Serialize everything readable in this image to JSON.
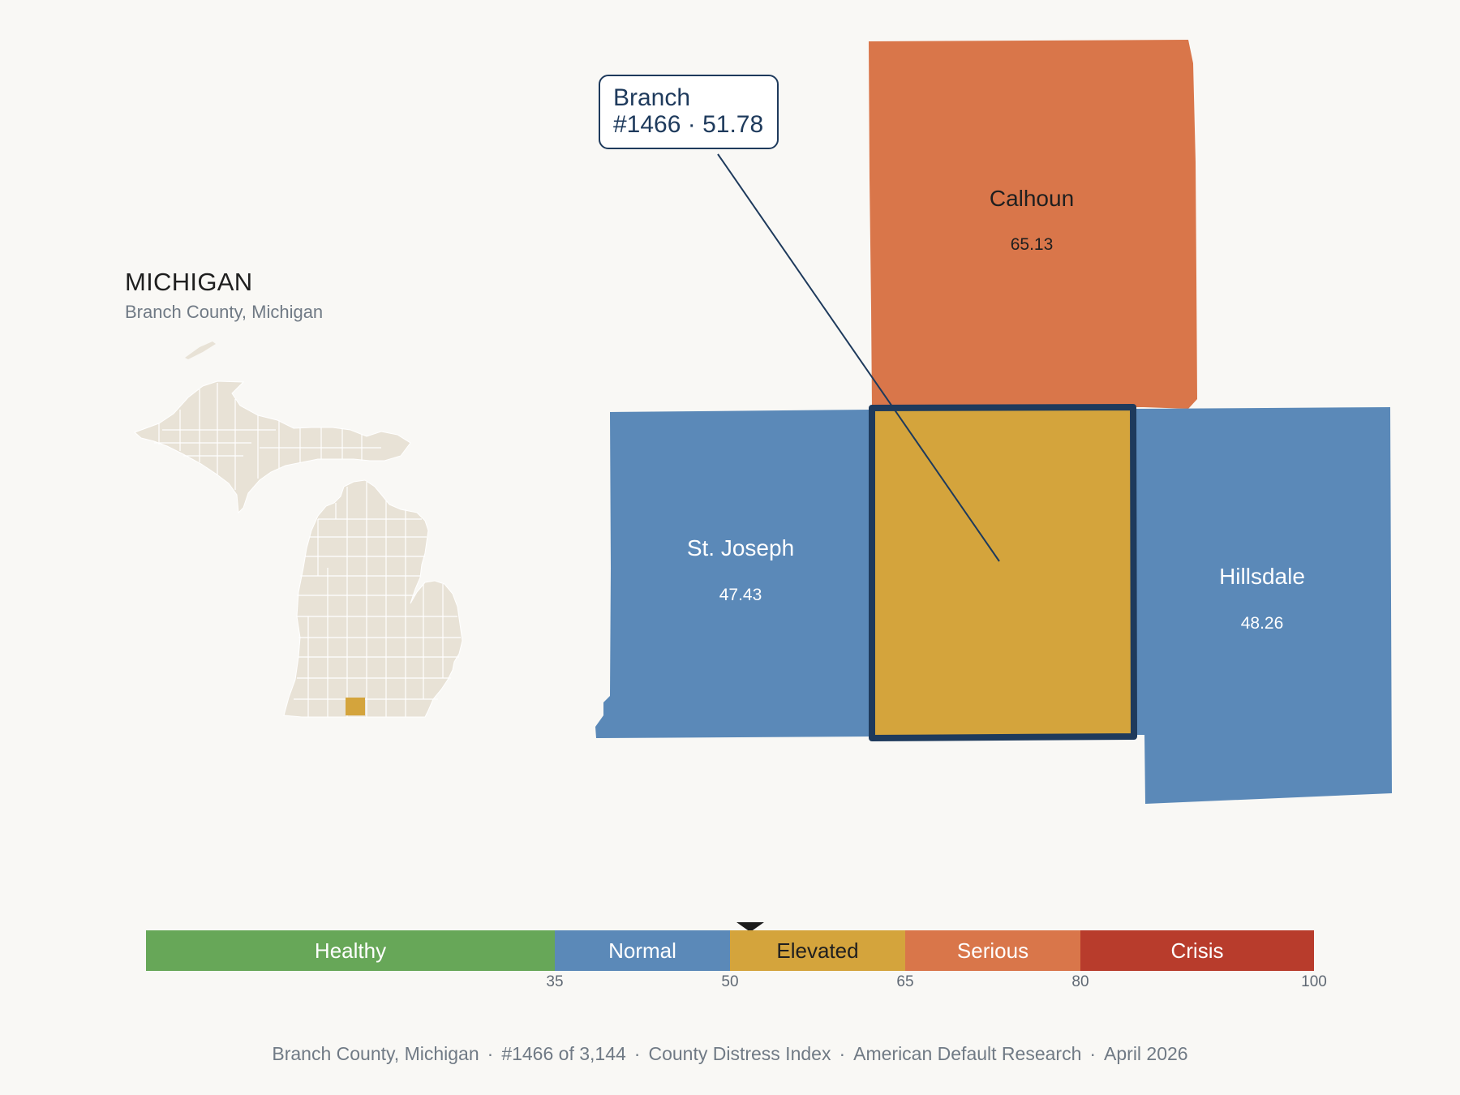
{
  "inset": {
    "title": "MICHIGAN",
    "subtitle": "Branch County, Michigan",
    "county_fill": "#e8e2d6",
    "highlight_fill": "#d4a43c"
  },
  "callout": {
    "line1": "Branch",
    "line2": "#1466 · 51.78"
  },
  "counties": [
    {
      "name": "Calhoun",
      "value": "65.13",
      "category": "Serious",
      "color": "#d9764a",
      "label_color": "#1f1f1f"
    },
    {
      "name": "St. Joseph",
      "value": "47.43",
      "category": "Normal",
      "color": "#5b89b8",
      "label_color": "#ffffff"
    },
    {
      "name": "Hillsdale",
      "value": "48.26",
      "category": "Normal",
      "color": "#5b89b8",
      "label_color": "#ffffff"
    },
    {
      "name": "Branch",
      "value": "51.78",
      "category": "Elevated",
      "color": "#d4a43c",
      "highlight": true
    }
  ],
  "scale": {
    "segments": [
      {
        "label": "Healthy",
        "from": 0,
        "to": 35,
        "color": "#67a758",
        "text_color": "#ffffff"
      },
      {
        "label": "Normal",
        "from": 35,
        "to": 50,
        "color": "#5b89b8",
        "text_color": "#ffffff"
      },
      {
        "label": "Elevated",
        "from": 50,
        "to": 65,
        "color": "#d4a43c",
        "text_color": "#1f1f1f"
      },
      {
        "label": "Serious",
        "from": 65,
        "to": 80,
        "color": "#d9764a",
        "text_color": "#ffffff"
      },
      {
        "label": "Crisis",
        "from": 80,
        "to": 100,
        "color": "#b83c2c",
        "text_color": "#ffffff"
      }
    ],
    "ticks": [
      "35",
      "50",
      "65",
      "80",
      "100"
    ],
    "marker_value": 51.78
  },
  "footer": {
    "county": "Branch County, Michigan",
    "rank": "#1466 of 3,144",
    "index": "County Distress Index",
    "source": "American Default Research",
    "date": "April 2026"
  }
}
